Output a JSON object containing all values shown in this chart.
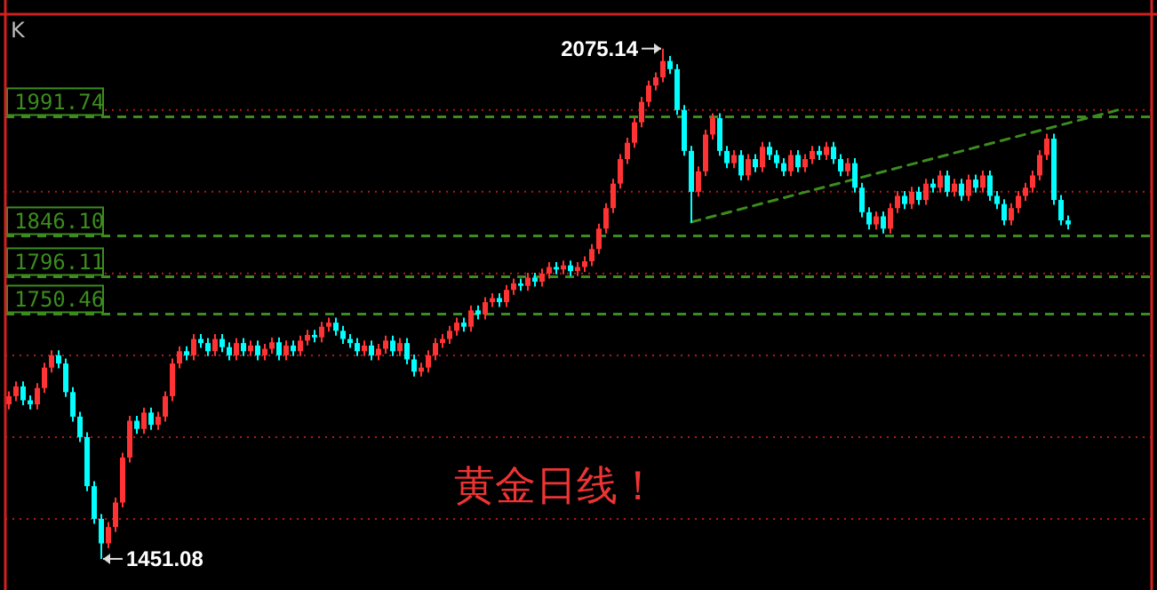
{
  "chart_data": {
    "type": "candlestick",
    "categories": [
      null,
      null,
      null,
      null,
      null,
      null,
      null,
      null,
      null,
      null,
      null,
      null,
      null,
      null,
      null,
      null,
      null,
      null,
      null,
      null,
      null,
      null,
      null,
      null,
      null,
      null,
      null,
      null,
      null,
      null,
      null,
      null,
      null,
      null,
      null,
      null,
      null,
      null,
      null,
      null,
      null,
      null,
      null,
      null,
      null,
      null,
      null,
      null,
      null,
      null,
      null,
      null,
      null,
      null,
      null,
      null,
      null,
      null,
      null,
      null,
      null,
      null,
      null,
      null,
      null,
      null,
      null,
      null,
      null,
      null,
      null,
      null,
      null,
      null,
      null,
      null,
      null,
      null,
      null,
      null,
      null,
      null,
      null,
      null,
      null,
      null,
      null,
      null,
      null,
      null,
      null,
      null,
      null,
      null,
      null,
      null,
      null,
      null,
      null,
      null,
      null,
      null,
      null,
      null,
      null,
      null,
      null,
      null,
      null,
      null,
      null,
      null,
      null,
      null,
      null,
      null,
      null,
      null,
      null,
      null,
      null,
      null,
      null,
      null,
      null,
      null,
      null,
      null,
      null,
      null,
      null,
      null,
      null,
      null,
      null,
      null,
      null,
      null,
      null,
      null,
      null,
      null,
      null,
      null,
      null,
      null,
      null,
      null,
      null,
      null,
      null,
      null,
      null,
      null,
      null,
      null,
      null
    ],
    "ohlc": [
      [
        1640,
        1656,
        1634,
        1650
      ],
      [
        1650,
        1668,
        1644,
        1662
      ],
      [
        1662,
        1668,
        1639,
        1645
      ],
      [
        1645,
        1651,
        1634,
        1640
      ],
      [
        1640,
        1666,
        1634,
        1660
      ],
      [
        1660,
        1691,
        1654,
        1685
      ],
      [
        1685,
        1706,
        1679,
        1700
      ],
      [
        1700,
        1706,
        1684,
        1690
      ],
      [
        1690,
        1696,
        1649,
        1655
      ],
      [
        1655,
        1661,
        1619,
        1625
      ],
      [
        1625,
        1631,
        1594,
        1600
      ],
      [
        1600,
        1606,
        1534,
        1540
      ],
      [
        1540,
        1546,
        1494,
        1500
      ],
      [
        1500,
        1506,
        1451.08,
        1470
      ],
      [
        1470,
        1496,
        1464,
        1490
      ],
      [
        1490,
        1526,
        1484,
        1520
      ],
      [
        1520,
        1581,
        1514,
        1575
      ],
      [
        1575,
        1626,
        1569,
        1620
      ],
      [
        1620,
        1626,
        1604,
        1610
      ],
      [
        1610,
        1636,
        1604,
        1630
      ],
      [
        1630,
        1636,
        1609,
        1615
      ],
      [
        1615,
        1631,
        1609,
        1625
      ],
      [
        1625,
        1656,
        1619,
        1650
      ],
      [
        1650,
        1696,
        1644,
        1690
      ],
      [
        1690,
        1711,
        1684,
        1705
      ],
      [
        1705,
        1711,
        1694,
        1700
      ],
      [
        1700,
        1726,
        1694,
        1720
      ],
      [
        1720,
        1726,
        1709,
        1715
      ],
      [
        1715,
        1721,
        1699,
        1705
      ],
      [
        1705,
        1726,
        1699,
        1720
      ],
      [
        1720,
        1726,
        1704,
        1710
      ],
      [
        1710,
        1716,
        1694,
        1700
      ],
      [
        1700,
        1721,
        1694,
        1715
      ],
      [
        1715,
        1721,
        1699,
        1705
      ],
      [
        1705,
        1718,
        1699,
        1712
      ],
      [
        1712,
        1718,
        1694,
        1700
      ],
      [
        1700,
        1714,
        1694,
        1708
      ],
      [
        1708,
        1722,
        1702,
        1716
      ],
      [
        1716,
        1722,
        1694,
        1700
      ],
      [
        1700,
        1718,
        1694,
        1712
      ],
      [
        1712,
        1718,
        1699,
        1705
      ],
      [
        1705,
        1724,
        1699,
        1718
      ],
      [
        1718,
        1731,
        1712,
        1725
      ],
      [
        1725,
        1731,
        1716,
        1722
      ],
      [
        1722,
        1741,
        1716,
        1735
      ],
      [
        1735,
        1746,
        1729,
        1740
      ],
      [
        1740,
        1746,
        1724,
        1730
      ],
      [
        1730,
        1736,
        1714,
        1720
      ],
      [
        1720,
        1726,
        1709,
        1715
      ],
      [
        1715,
        1721,
        1699,
        1705
      ],
      [
        1705,
        1718,
        1699,
        1712
      ],
      [
        1712,
        1718,
        1694,
        1700
      ],
      [
        1700,
        1714,
        1694,
        1708
      ],
      [
        1708,
        1724,
        1702,
        1718
      ],
      [
        1718,
        1724,
        1699,
        1705
      ],
      [
        1705,
        1721,
        1699,
        1715
      ],
      [
        1715,
        1721,
        1689,
        1695
      ],
      [
        1695,
        1701,
        1674,
        1680
      ],
      [
        1680,
        1691,
        1674,
        1685
      ],
      [
        1685,
        1706,
        1679,
        1700
      ],
      [
        1700,
        1721,
        1694,
        1715
      ],
      [
        1715,
        1726,
        1709,
        1720
      ],
      [
        1720,
        1736,
        1714,
        1730
      ],
      [
        1730,
        1746,
        1724,
        1740
      ],
      [
        1740,
        1746,
        1729,
        1735
      ],
      [
        1735,
        1761,
        1729,
        1755
      ],
      [
        1755,
        1761,
        1744,
        1750
      ],
      [
        1750,
        1771,
        1744,
        1765
      ],
      [
        1765,
        1776,
        1759,
        1770
      ],
      [
        1770,
        1776,
        1759,
        1765
      ],
      [
        1765,
        1786,
        1759,
        1780
      ],
      [
        1780,
        1794,
        1774,
        1788
      ],
      [
        1788,
        1794,
        1779,
        1785
      ],
      [
        1785,
        1801,
        1779,
        1795
      ],
      [
        1795,
        1801,
        1784,
        1790
      ],
      [
        1790,
        1806,
        1784,
        1800
      ],
      [
        1800,
        1814,
        1794,
        1808
      ],
      [
        1808,
        1814,
        1799,
        1805
      ],
      [
        1805,
        1816,
        1799,
        1810
      ],
      [
        1810,
        1816,
        1797,
        1803
      ],
      [
        1803,
        1814,
        1797,
        1808
      ],
      [
        1808,
        1821,
        1802,
        1815
      ],
      [
        1815,
        1836,
        1809,
        1830
      ],
      [
        1830,
        1861,
        1824,
        1855
      ],
      [
        1855,
        1886,
        1849,
        1880
      ],
      [
        1880,
        1916,
        1874,
        1910
      ],
      [
        1910,
        1946,
        1904,
        1940
      ],
      [
        1940,
        1966,
        1934,
        1960
      ],
      [
        1960,
        1991,
        1954,
        1985
      ],
      [
        1985,
        2016,
        1979,
        2010
      ],
      [
        2010,
        2036,
        2004,
        2030
      ],
      [
        2030,
        2046,
        2024,
        2040
      ],
      [
        2040,
        2075.14,
        2034,
        2060
      ],
      [
        2060,
        2066,
        2044,
        2050
      ],
      [
        2050,
        2056,
        1994,
        2000
      ],
      [
        2000,
        2006,
        1944,
        1950
      ],
      [
        1950,
        1956,
        1862,
        1900
      ],
      [
        1900,
        1931,
        1894,
        1925
      ],
      [
        1925,
        1976,
        1919,
        1970
      ],
      [
        1970,
        1996,
        1964,
        1990
      ],
      [
        1990,
        1996,
        1944,
        1950
      ],
      [
        1950,
        1956,
        1929,
        1935
      ],
      [
        1935,
        1951,
        1929,
        1945
      ],
      [
        1945,
        1951,
        1914,
        1920
      ],
      [
        1920,
        1946,
        1914,
        1940
      ],
      [
        1940,
        1946,
        1924,
        1930
      ],
      [
        1930,
        1961,
        1924,
        1955
      ],
      [
        1955,
        1961,
        1939,
        1945
      ],
      [
        1945,
        1951,
        1929,
        1935
      ],
      [
        1935,
        1941,
        1919,
        1925
      ],
      [
        1925,
        1951,
        1919,
        1945
      ],
      [
        1945,
        1951,
        1924,
        1930
      ],
      [
        1930,
        1946,
        1924,
        1940
      ],
      [
        1940,
        1956,
        1934,
        1950
      ],
      [
        1950,
        1956,
        1939,
        1945
      ],
      [
        1945,
        1961,
        1939,
        1955
      ],
      [
        1955,
        1961,
        1934,
        1940
      ],
      [
        1940,
        1946,
        1919,
        1925
      ],
      [
        1925,
        1941,
        1919,
        1935
      ],
      [
        1935,
        1941,
        1899,
        1905
      ],
      [
        1905,
        1911,
        1869,
        1875
      ],
      [
        1875,
        1881,
        1854,
        1860
      ],
      [
        1860,
        1876,
        1854,
        1870
      ],
      [
        1870,
        1876,
        1849,
        1855
      ],
      [
        1855,
        1886,
        1849,
        1880
      ],
      [
        1880,
        1901,
        1874,
        1895
      ],
      [
        1895,
        1901,
        1879,
        1885
      ],
      [
        1885,
        1906,
        1879,
        1900
      ],
      [
        1900,
        1906,
        1884,
        1890
      ],
      [
        1890,
        1916,
        1884,
        1910
      ],
      [
        1910,
        1916,
        1899,
        1905
      ],
      [
        1905,
        1926,
        1899,
        1920
      ],
      [
        1920,
        1926,
        1894,
        1900
      ],
      [
        1900,
        1916,
        1894,
        1910
      ],
      [
        1910,
        1916,
        1889,
        1895
      ],
      [
        1895,
        1921,
        1889,
        1915
      ],
      [
        1915,
        1921,
        1899,
        1905
      ],
      [
        1905,
        1926,
        1899,
        1920
      ],
      [
        1920,
        1926,
        1889,
        1895
      ],
      [
        1895,
        1901,
        1879,
        1885
      ],
      [
        1885,
        1891,
        1859,
        1865
      ],
      [
        1865,
        1886,
        1859,
        1880
      ],
      [
        1880,
        1901,
        1874,
        1895
      ],
      [
        1895,
        1911,
        1889,
        1905
      ],
      [
        1905,
        1926,
        1899,
        1920
      ],
      [
        1920,
        1951,
        1914,
        1945
      ],
      [
        1945,
        1971,
        1939,
        1965
      ],
      [
        1965,
        1971,
        1884,
        1890
      ],
      [
        1890,
        1896,
        1859,
        1865
      ],
      [
        1865,
        1871,
        1854,
        1860
      ],
      null,
      null,
      null,
      null,
      null,
      null,
      null
    ],
    "colors": [
      "#ff3333",
      "#ff3333",
      "#00ffff",
      "#00ffff",
      "#ff3333",
      "#ff3333",
      "#ff3333",
      "#00ffff",
      "#00ffff",
      "#00ffff",
      "#00ffff",
      "#00ffff",
      "#00ffff",
      "#00ffff",
      "#ff3333",
      "#ff3333",
      "#ff3333",
      "#ff3333",
      "#00ffff",
      "#ff3333",
      "#00ffff",
      "#ff3333",
      "#ff3333",
      "#ff3333",
      "#ff3333",
      "#00ffff",
      "#ff3333",
      "#00ffff",
      "#00ffff",
      "#ff3333",
      "#00ffff",
      "#00ffff",
      "#ff3333",
      "#00ffff",
      "#ff3333",
      "#00ffff",
      "#ff3333",
      "#ff3333",
      "#00ffff",
      "#ff3333",
      "#00ffff",
      "#ff3333",
      "#ff3333",
      "#00ffff",
      "#ff3333",
      "#ff3333",
      "#00ffff",
      "#00ffff",
      "#00ffff",
      "#00ffff",
      "#ff3333",
      "#00ffff",
      "#ff3333",
      "#ff3333",
      "#00ffff",
      "#ff3333",
      "#00ffff",
      "#00ffff",
      "#ff3333",
      "#ff3333",
      "#ff3333",
      "#ff3333",
      "#ff3333",
      "#ff3333",
      "#00ffff",
      "#ff3333",
      "#00ffff",
      "#ff3333",
      "#ff3333",
      "#00ffff",
      "#ff3333",
      "#ff3333",
      "#00ffff",
      "#ff3333",
      "#00ffff",
      "#ff3333",
      "#ff3333",
      "#00ffff",
      "#ff3333",
      "#00ffff",
      "#ff3333",
      "#ff3333",
      "#ff3333",
      "#ff3333",
      "#ff3333",
      "#ff3333",
      "#ff3333",
      "#ff3333",
      "#ff3333",
      "#ff3333",
      "#ff3333",
      "#ff3333",
      "#ff3333",
      "#00ffff",
      "#00ffff",
      "#00ffff",
      "#00ffff",
      "#ff3333",
      "#ff3333",
      "#ff3333",
      "#00ffff",
      "#00ffff",
      "#ff3333",
      "#00ffff",
      "#ff3333",
      "#00ffff",
      "#ff3333",
      "#00ffff",
      "#00ffff",
      "#00ffff",
      "#ff3333",
      "#00ffff",
      "#ff3333",
      "#ff3333",
      "#00ffff",
      "#ff3333",
      "#00ffff",
      "#00ffff",
      "#ff3333",
      "#00ffff",
      "#00ffff",
      "#00ffff",
      "#ff3333",
      "#00ffff",
      "#ff3333",
      "#ff3333",
      "#00ffff",
      "#ff3333",
      "#00ffff",
      "#ff3333",
      "#00ffff",
      "#ff3333",
      "#00ffff",
      "#ff3333",
      "#00ffff",
      "#ff3333",
      "#00ffff",
      "#ff3333",
      "#00ffff",
      "#00ffff",
      "#00ffff",
      "#ff3333",
      "#ff3333",
      "#ff3333",
      "#ff3333",
      "#ff3333",
      "#ff3333",
      "#00ffff",
      "#00ffff",
      "#00ffff",
      null,
      null,
      null,
      null,
      null,
      null,
      null
    ],
    "series": [
      {
        "type": "line",
        "color": "#3c8c1e",
        "line_style": "dashed",
        "values": [
          null,
          null,
          null,
          null,
          null,
          null,
          null,
          null,
          null,
          null,
          null,
          null,
          null,
          null,
          null,
          null,
          null,
          null,
          null,
          null,
          null,
          null,
          null,
          null,
          null,
          null,
          null,
          null,
          null,
          null,
          null,
          null,
          null,
          null,
          null,
          null,
          null,
          null,
          null,
          null,
          null,
          null,
          null,
          null,
          null,
          null,
          null,
          null,
          null,
          null,
          null,
          null,
          null,
          null,
          null,
          null,
          null,
          null,
          null,
          null,
          null,
          null,
          null,
          null,
          null,
          null,
          null,
          null,
          null,
          null,
          null,
          null,
          null,
          null,
          null,
          null,
          null,
          null,
          null,
          null,
          null,
          null,
          null,
          null,
          null,
          null,
          null,
          null,
          null,
          null,
          null,
          null,
          null,
          null,
          null,
          null,
          1863,
          null,
          null,
          null,
          null,
          null,
          null,
          null,
          null,
          null,
          null,
          null,
          null,
          null,
          null,
          null,
          null,
          null,
          null,
          null,
          null,
          null,
          null,
          null,
          null,
          null,
          null,
          null,
          null,
          null,
          null,
          null,
          null,
          null,
          null,
          null,
          null,
          null,
          null,
          null,
          null,
          null,
          null,
          null,
          null,
          null,
          null,
          null,
          null,
          null,
          null,
          null,
          null,
          null,
          null,
          null,
          null,
          null,
          null,
          null,
          2000
        ]
      }
    ],
    "ylim": [
      1413,
      2115
    ],
    "yticks": [
      {
        "value": 1500,
        "label": null
      },
      {
        "value": 1600,
        "label": null
      },
      {
        "value": 1700,
        "label": null
      },
      {
        "value": 1800,
        "label": null
      },
      {
        "value": 1900,
        "label": null
      },
      {
        "value": 2000,
        "label": null
      }
    ],
    "grid": "y",
    "ref_lines": [
      {
        "axis": "y",
        "value": 1991.74,
        "label": "1991.74",
        "color": "#3c8c1e",
        "line_style": "dashed"
      },
      {
        "axis": "y",
        "value": 1846.1,
        "label": "1846.10",
        "color": "#3c8c1e",
        "line_style": "dashed"
      },
      {
        "axis": "y",
        "value": 1796.11,
        "label": "1796.11",
        "color": "#3c8c1e",
        "line_style": "dashed"
      },
      {
        "axis": "y",
        "value": 1750.46,
        "label": "1750.46",
        "color": "#3c8c1e",
        "line_style": "dashed"
      }
    ],
    "annotations": [
      "K",
      "黄金日线！",
      "2075.14",
      "1451.08"
    ]
  }
}
